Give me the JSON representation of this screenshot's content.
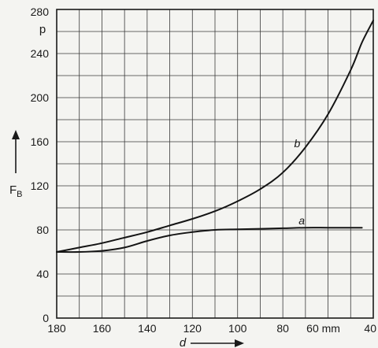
{
  "chart_data": {
    "type": "line",
    "xlabel": "d",
    "ylabel": "F",
    "ylabel_subscript": "B",
    "y_unit": "p",
    "x_unit": "mm",
    "xlim": [
      180,
      40
    ],
    "ylim": [
      0,
      280
    ],
    "x_reversed": true,
    "grid": true,
    "x_tick_labels": [
      {
        "value": 180,
        "text": "180"
      },
      {
        "value": 160,
        "text": "160"
      },
      {
        "value": 140,
        "text": "140"
      },
      {
        "value": 120,
        "text": "120"
      },
      {
        "value": 100,
        "text": "100"
      },
      {
        "value": 80,
        "text": "80"
      },
      {
        "value": 60,
        "text": "60 mm"
      },
      {
        "value": 40,
        "text": "40"
      }
    ],
    "y_tick_labels": [
      {
        "value": 0,
        "text": "0"
      },
      {
        "value": 40,
        "text": "40"
      },
      {
        "value": 80,
        "text": "80"
      },
      {
        "value": 120,
        "text": "120"
      },
      {
        "value": 160,
        "text": "160"
      },
      {
        "value": 200,
        "text": "200"
      },
      {
        "value": 240,
        "text": "240"
      },
      {
        "value": 280,
        "text": "280"
      }
    ],
    "series": [
      {
        "name": "a",
        "label_at": {
          "x": 73,
          "y": 85
        },
        "x": [
          180,
          170,
          160,
          150,
          140,
          130,
          120,
          110,
          100,
          90,
          80,
          70,
          60,
          50,
          45
        ],
        "y": [
          60,
          60,
          61,
          64,
          70,
          75,
          78,
          80,
          80.5,
          81,
          81.5,
          82,
          82,
          82,
          82
        ]
      },
      {
        "name": "b",
        "label_at": {
          "x": 75,
          "y": 155
        },
        "x": [
          180,
          170,
          160,
          150,
          140,
          130,
          120,
          110,
          100,
          90,
          80,
          70,
          60,
          50,
          45,
          40
        ],
        "y": [
          60,
          64,
          68,
          73,
          78,
          84,
          90,
          97,
          106,
          117,
          132,
          155,
          185,
          225,
          250,
          270
        ]
      }
    ]
  }
}
